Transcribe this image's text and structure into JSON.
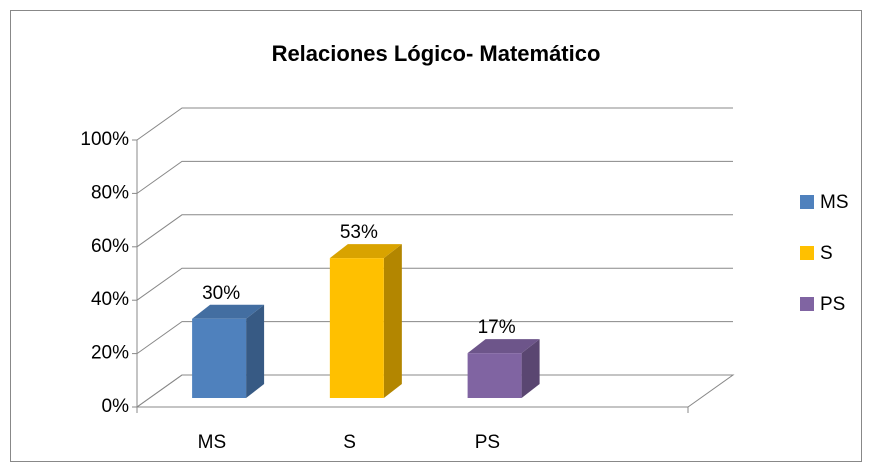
{
  "chart_data": {
    "type": "bar3d",
    "title": "Relaciones Lógico- Matemático",
    "categories": [
      "MS",
      "S",
      "PS"
    ],
    "values": [
      30,
      53,
      17
    ],
    "value_labels": [
      "30%",
      "53%",
      "17%"
    ],
    "colors": [
      "#4f81bd",
      "#ffc000",
      "#8064a2"
    ],
    "ylim": [
      0,
      100
    ],
    "yticks": [
      {
        "value": 0,
        "label": "0%"
      },
      {
        "value": 20,
        "label": "20%"
      },
      {
        "value": 40,
        "label": "40%"
      },
      {
        "value": 60,
        "label": "60%"
      },
      {
        "value": 80,
        "label": "80%"
      },
      {
        "value": 100,
        "label": "100%"
      }
    ],
    "grid": true,
    "legend": "right"
  }
}
